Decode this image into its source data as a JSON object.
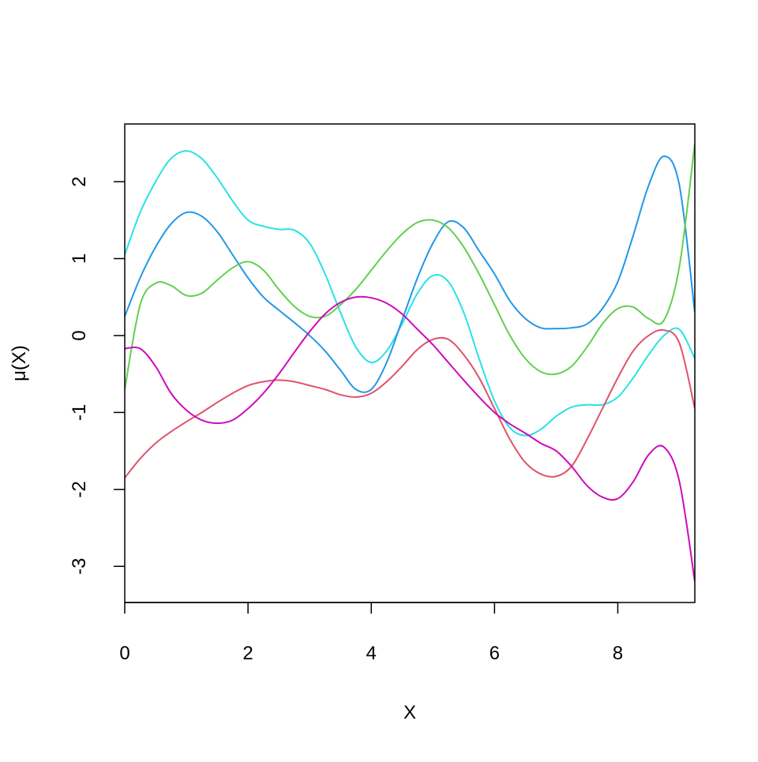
{
  "chart_data": {
    "type": "line",
    "xlabel": "X",
    "ylabel": "μ(X)",
    "x": [
      0,
      0.25,
      0.5,
      0.75,
      1,
      1.25,
      1.5,
      1.75,
      2,
      2.25,
      2.5,
      2.75,
      3,
      3.25,
      3.5,
      3.75,
      4,
      4.25,
      4.5,
      4.75,
      5,
      5.25,
      5.5,
      5.75,
      6,
      6.25,
      6.5,
      6.75,
      7,
      7.25,
      7.5,
      7.75,
      8,
      8.25,
      8.5,
      8.75,
      9,
      9.25
    ],
    "series": [
      {
        "color": "#28E2E5",
        "values": [
          1.05,
          1.6,
          2.0,
          2.3,
          2.4,
          2.3,
          2.05,
          1.75,
          1.5,
          1.42,
          1.38,
          1.37,
          1.2,
          0.8,
          0.3,
          -0.15,
          -0.35,
          -0.2,
          0.15,
          0.55,
          0.78,
          0.7,
          0.3,
          -0.3,
          -0.85,
          -1.2,
          -1.3,
          -1.22,
          -1.05,
          -0.93,
          -0.9,
          -0.9,
          -0.8,
          -0.55,
          -0.25,
          0.0,
          0.08,
          -0.3
        ]
      },
      {
        "color": "#2297E6",
        "values": [
          0.25,
          0.75,
          1.15,
          1.45,
          1.6,
          1.55,
          1.35,
          1.05,
          0.75,
          0.5,
          0.33,
          0.17,
          0.0,
          -0.2,
          -0.45,
          -0.7,
          -0.7,
          -0.35,
          0.2,
          0.75,
          1.2,
          1.48,
          1.4,
          1.1,
          0.8,
          0.45,
          0.22,
          0.1,
          0.09,
          0.1,
          0.15,
          0.35,
          0.7,
          1.3,
          1.95,
          2.33,
          1.95,
          0.3
        ]
      },
      {
        "color": "#61D04F",
        "values": [
          -0.7,
          0.4,
          0.68,
          0.65,
          0.52,
          0.55,
          0.72,
          0.88,
          0.96,
          0.85,
          0.6,
          0.38,
          0.25,
          0.25,
          0.4,
          0.6,
          0.85,
          1.1,
          1.32,
          1.47,
          1.5,
          1.4,
          1.15,
          0.8,
          0.4,
          0.0,
          -0.3,
          -0.47,
          -0.5,
          -0.4,
          -0.15,
          0.15,
          0.35,
          0.37,
          0.22,
          0.2,
          0.9,
          2.5
        ]
      },
      {
        "color": "#DF536B",
        "values": [
          -1.85,
          -1.6,
          -1.4,
          -1.25,
          -1.12,
          -1.0,
          -0.87,
          -0.75,
          -0.65,
          -0.6,
          -0.58,
          -0.6,
          -0.65,
          -0.7,
          -0.77,
          -0.8,
          -0.75,
          -0.6,
          -0.4,
          -0.18,
          -0.05,
          -0.05,
          -0.25,
          -0.55,
          -0.95,
          -1.35,
          -1.65,
          -1.8,
          -1.83,
          -1.7,
          -1.35,
          -0.95,
          -0.55,
          -0.2,
          0.0,
          0.07,
          -0.1,
          -0.95
        ]
      },
      {
        "color": "#CD0BBC",
        "values": [
          -0.17,
          -0.17,
          -0.4,
          -0.75,
          -0.97,
          -1.1,
          -1.14,
          -1.1,
          -0.95,
          -0.75,
          -0.5,
          -0.22,
          0.05,
          0.28,
          0.43,
          0.5,
          0.49,
          0.42,
          0.28,
          0.08,
          -0.12,
          -0.35,
          -0.58,
          -0.8,
          -1.0,
          -1.15,
          -1.27,
          -1.4,
          -1.5,
          -1.7,
          -1.95,
          -2.1,
          -2.12,
          -1.9,
          -1.55,
          -1.45,
          -1.9,
          -3.2
        ]
      }
    ],
    "xlim": [
      0,
      9.25
    ],
    "ylim": [
      -3.47,
      2.75
    ],
    "xticks": [
      0,
      2,
      4,
      6,
      8
    ],
    "yticks": [
      -3,
      -2,
      -1,
      0,
      1,
      2
    ]
  }
}
